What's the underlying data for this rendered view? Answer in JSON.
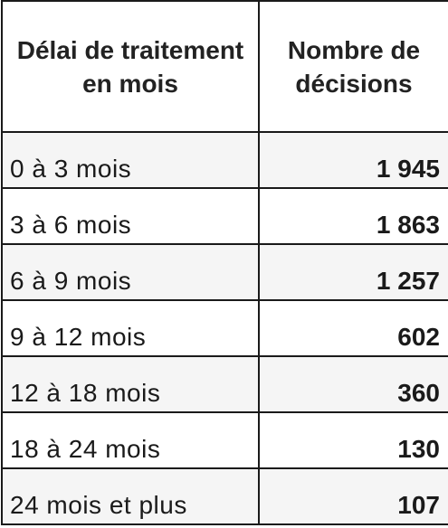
{
  "table": {
    "headers": [
      "Délai de traitement en mois",
      "Nombre de décisions"
    ],
    "rows": [
      {
        "label": "0 à 3 mois",
        "value": "1 945"
      },
      {
        "label": "3 à 6 mois",
        "value": "1 863"
      },
      {
        "label": "6 à 9 mois",
        "value": "1 257"
      },
      {
        "label": "9 à 12 mois",
        "value": "602"
      },
      {
        "label": "12 à 18 mois",
        "value": "360"
      },
      {
        "label": "18 à 24 mois",
        "value": "130"
      },
      {
        "label": "24 mois et plus",
        "value": "107"
      }
    ]
  }
}
